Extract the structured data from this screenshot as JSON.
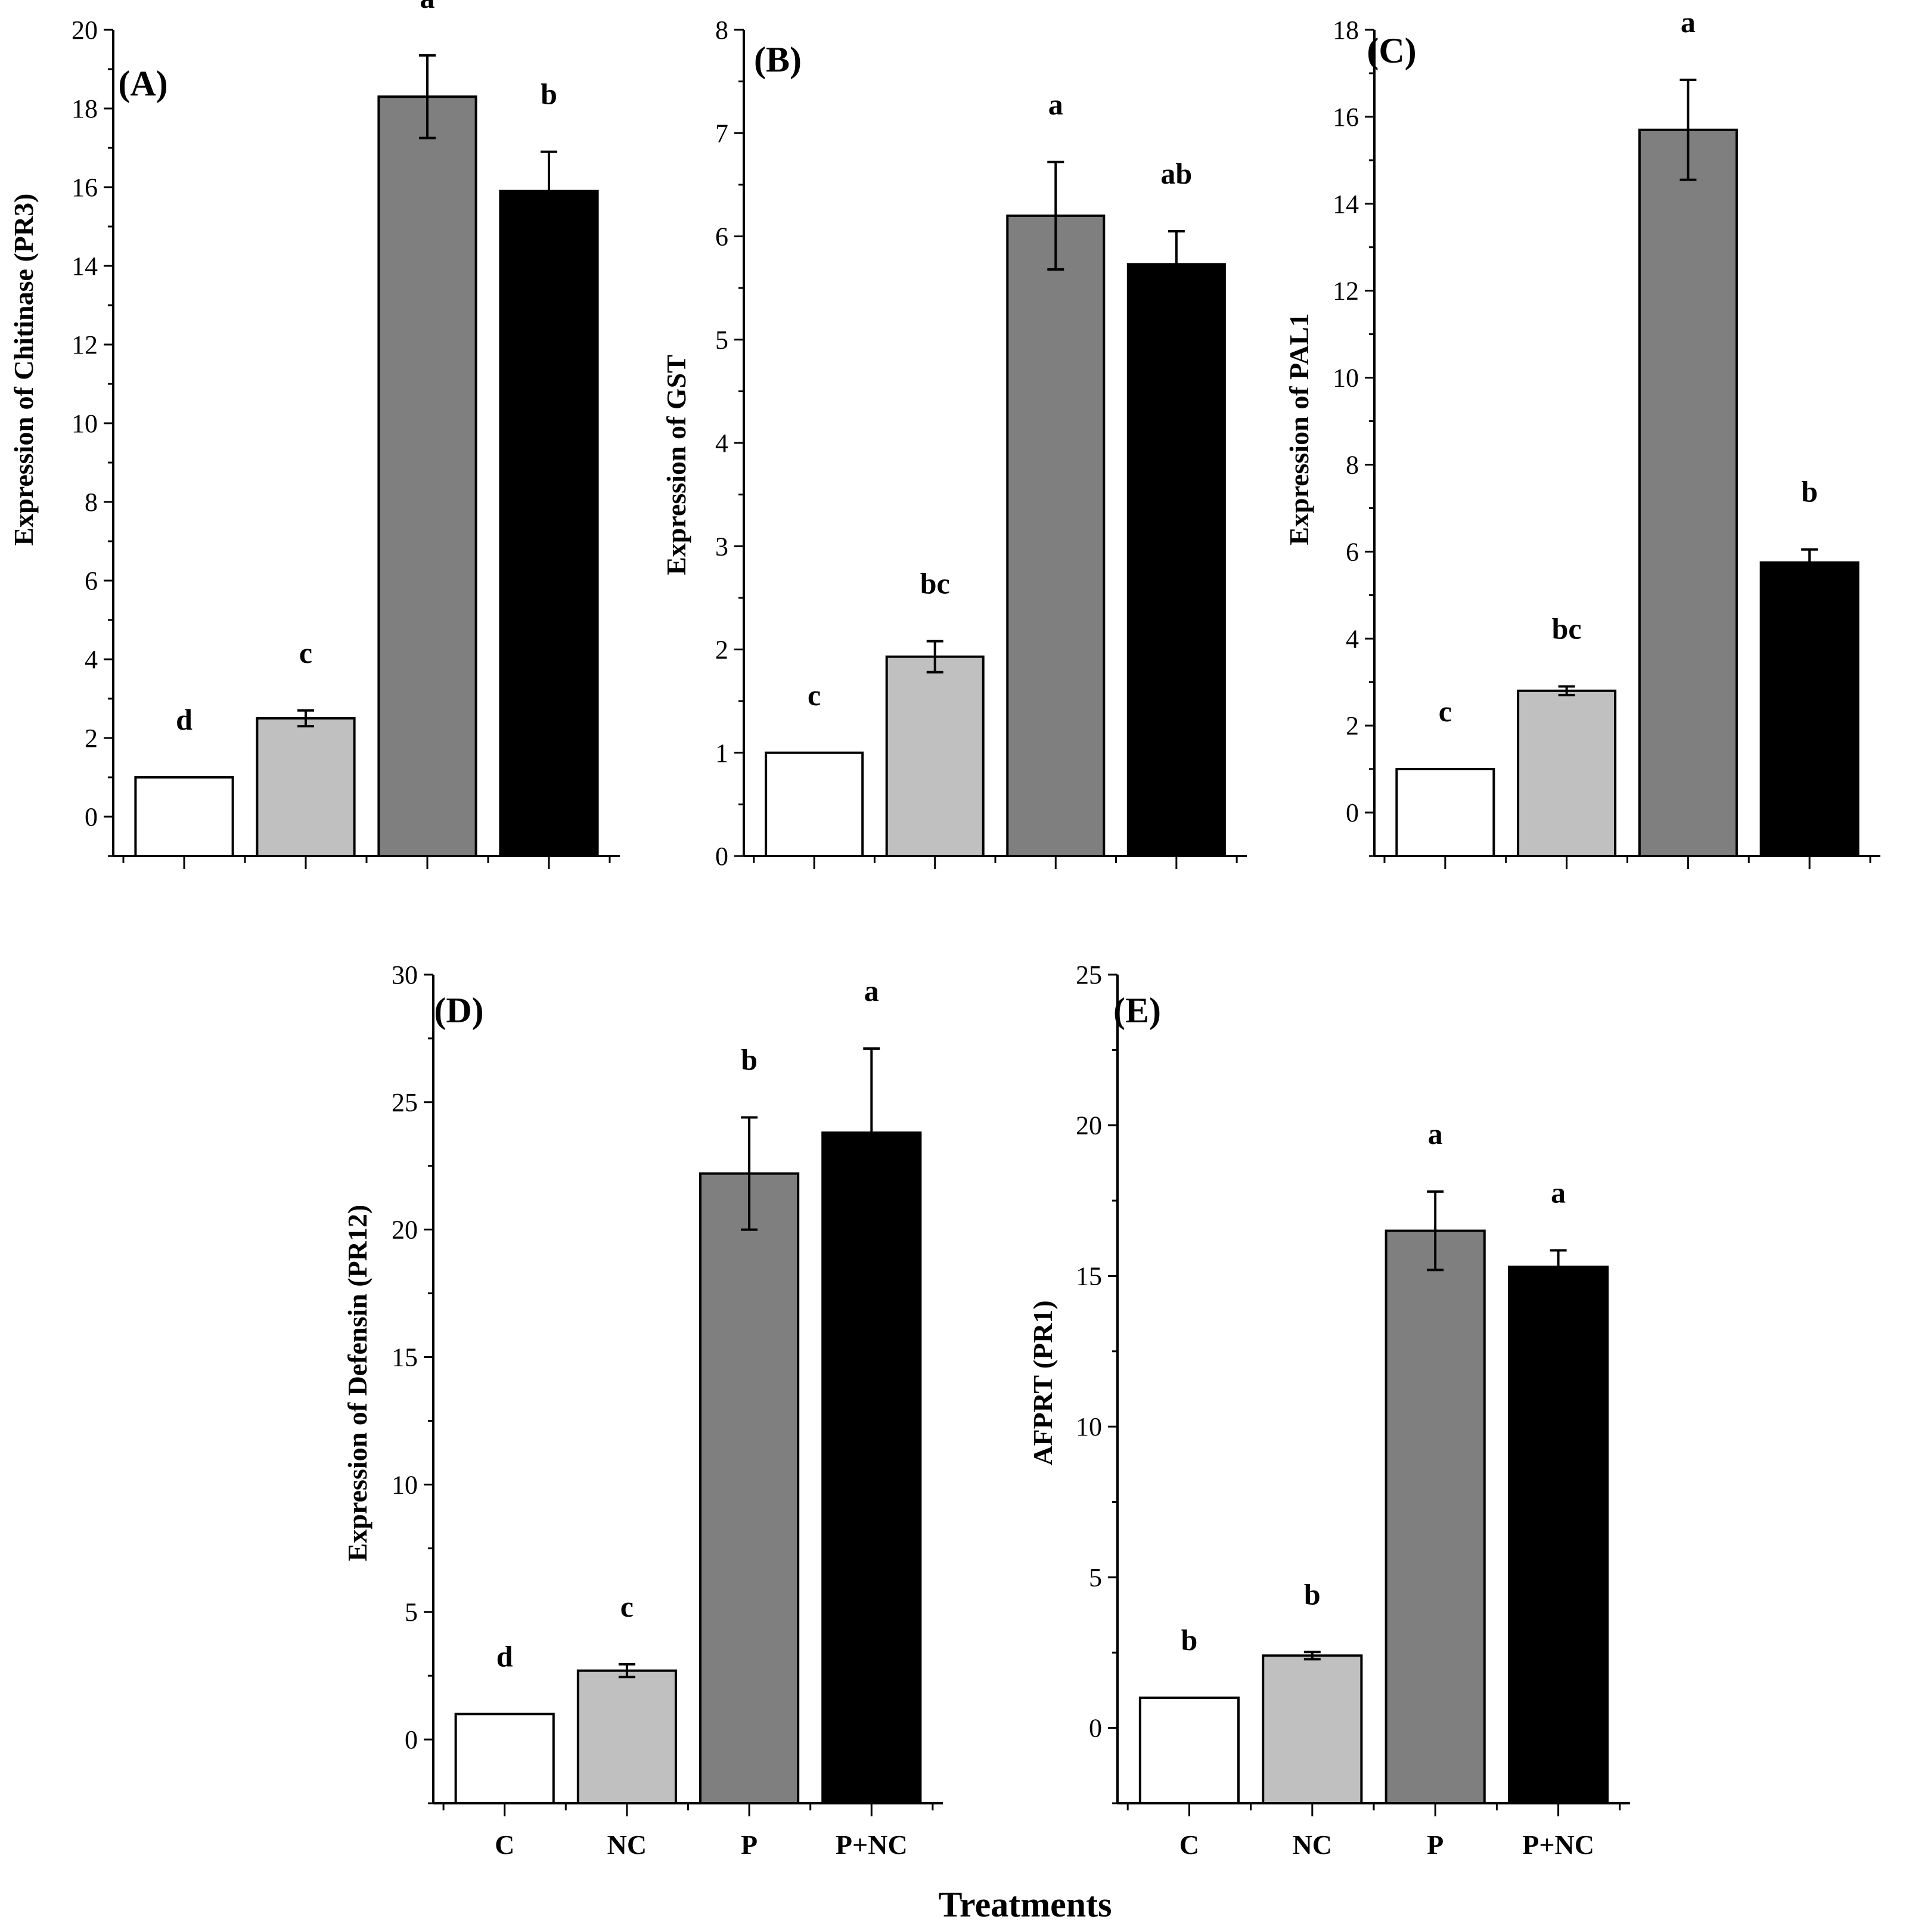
{
  "x_title": "Treatments",
  "chart_data": [
    {
      "type": "bar",
      "panel": "(A)",
      "ylabel": "Expression of Chitinase (PR3)",
      "ylim": [
        -1,
        20
      ],
      "yticks": [
        0,
        2,
        4,
        6,
        8,
        10,
        12,
        14,
        16,
        18,
        20
      ],
      "categories": [
        "C",
        "NC",
        "P",
        "P+NC"
      ],
      "show_categories": false,
      "values": [
        1.0,
        2.5,
        18.3,
        15.9
      ],
      "errors": [
        0,
        0.2,
        1.05,
        1.0
      ],
      "sig": [
        "d",
        "c",
        "a",
        "b"
      ],
      "bar_colors": [
        "#ffffff",
        "#c0c0c0",
        "#7f7f7f",
        "#000000"
      ]
    },
    {
      "type": "bar",
      "panel": "(B)",
      "ylabel": "Expression of GST",
      "ylim": [
        0,
        8
      ],
      "yticks": [
        0,
        1,
        2,
        3,
        4,
        5,
        6,
        7,
        8
      ],
      "categories": [
        "C",
        "NC",
        "P",
        "P+NC"
      ],
      "show_categories": false,
      "values": [
        1.0,
        1.93,
        6.2,
        5.73
      ],
      "errors": [
        0,
        0.15,
        0.52,
        0.32
      ],
      "sig": [
        "c",
        "bc",
        "a",
        "ab"
      ],
      "bar_colors": [
        "#ffffff",
        "#c0c0c0",
        "#7f7f7f",
        "#000000"
      ]
    },
    {
      "type": "bar",
      "panel": "(C)",
      "ylabel": "Expression of PAL1",
      "ylim": [
        -1,
        18
      ],
      "yticks": [
        0,
        2,
        4,
        6,
        8,
        10,
        12,
        14,
        16,
        18
      ],
      "categories": [
        "C",
        "NC",
        "P",
        "P+NC"
      ],
      "show_categories": false,
      "values": [
        1.0,
        2.8,
        15.7,
        5.75
      ],
      "errors": [
        0,
        0.1,
        1.15,
        0.3
      ],
      "sig": [
        "c",
        "bc",
        "a",
        "b"
      ],
      "bar_colors": [
        "#ffffff",
        "#c0c0c0",
        "#7f7f7f",
        "#000000"
      ]
    },
    {
      "type": "bar",
      "panel": "(D)",
      "ylabel": "Expression of Defensin (PR12)",
      "ylim": [
        -2.5,
        30
      ],
      "yticks": [
        0,
        5,
        10,
        15,
        20,
        25,
        30
      ],
      "categories": [
        "C",
        "NC",
        "P",
        "P+NC"
      ],
      "show_categories": true,
      "values": [
        1.0,
        2.7,
        22.2,
        23.8
      ],
      "errors": [
        0,
        0.25,
        2.2,
        3.3
      ],
      "sig": [
        "d",
        "c",
        "b",
        "a"
      ],
      "bar_colors": [
        "#ffffff",
        "#c0c0c0",
        "#7f7f7f",
        "#000000"
      ]
    },
    {
      "type": "bar",
      "panel": "(E)",
      "ylabel": "AFPRT (PR1)",
      "ylim": [
        -2.5,
        25
      ],
      "yticks": [
        0,
        5,
        10,
        15,
        20,
        25
      ],
      "categories": [
        "C",
        "NC",
        "P",
        "P+NC"
      ],
      "show_categories": true,
      "values": [
        1.0,
        2.4,
        16.5,
        15.3
      ],
      "errors": [
        0,
        0.12,
        1.3,
        0.55
      ],
      "sig": [
        "b",
        "b",
        "a",
        "a"
      ],
      "bar_colors": [
        "#ffffff",
        "#c0c0c0",
        "#7f7f7f",
        "#000000"
      ]
    }
  ]
}
